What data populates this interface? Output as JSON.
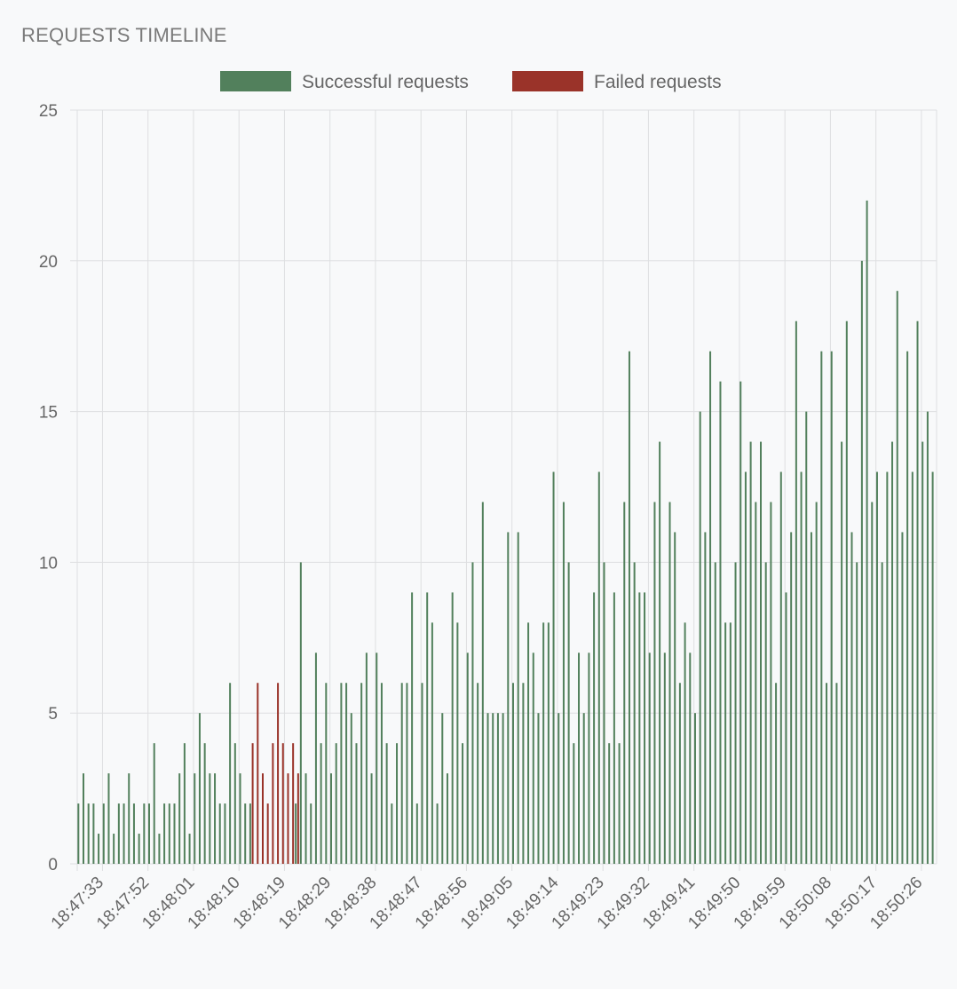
{
  "title": "REQUESTS TIMELINE",
  "chart_data": {
    "type": "bar",
    "title": "REQUESTS TIMELINE",
    "xlabel": "",
    "ylabel": "",
    "ylim": [
      0,
      25
    ],
    "y_ticks": [
      0,
      5,
      10,
      15,
      20,
      25
    ],
    "grid": true,
    "legend_position": "top-center",
    "x_tick_labels": [
      "18:47:33",
      "18:47:52",
      "18:48:01",
      "18:48:10",
      "18:48:19",
      "18:48:29",
      "18:48:38",
      "18:48:47",
      "18:48:56",
      "18:49:05",
      "18:49:14",
      "18:49:23",
      "18:49:32",
      "18:49:41",
      "18:49:50",
      "18:49:59",
      "18:50:08",
      "18:50:17",
      "18:50:26"
    ],
    "x_tick_first_index": 5,
    "x_tick_step": 9,
    "series": [
      {
        "name": "Successful requests",
        "color": "#52805c",
        "values": [
          2,
          3,
          2,
          2,
          1,
          2,
          3,
          1,
          2,
          2,
          3,
          2,
          1,
          2,
          2,
          4,
          1,
          2,
          2,
          2,
          3,
          4,
          1,
          3,
          5,
          4,
          3,
          3,
          2,
          2,
          6,
          4,
          3,
          2,
          2,
          0,
          0,
          0,
          0,
          0,
          0,
          0,
          0,
          2,
          10,
          3,
          2,
          7,
          4,
          6,
          3,
          4,
          6,
          6,
          5,
          4,
          6,
          7,
          3,
          7,
          6,
          4,
          2,
          4,
          6,
          6,
          9,
          2,
          6,
          9,
          8,
          2,
          5,
          3,
          9,
          8,
          4,
          7,
          10,
          6,
          12,
          5,
          5,
          5,
          5,
          11,
          6,
          11,
          6,
          8,
          7,
          5,
          8,
          8,
          13,
          5,
          12,
          10,
          4,
          7,
          5,
          7,
          9,
          13,
          10,
          4,
          9,
          4,
          12,
          17,
          10,
          9,
          9,
          7,
          12,
          14,
          7,
          12,
          11,
          6,
          8,
          7,
          5,
          15,
          11,
          17,
          10,
          16,
          8,
          8,
          10,
          16,
          13,
          14,
          12,
          14,
          10,
          12,
          6,
          13,
          9,
          11,
          18,
          13,
          15,
          11,
          12,
          17,
          6,
          17,
          6,
          14,
          18,
          11,
          10,
          20,
          22,
          12,
          13,
          10,
          13,
          14,
          19,
          11,
          17,
          13,
          18,
          14,
          15,
          13
        ]
      },
      {
        "name": "Failed requests",
        "color": "#9a3329",
        "values": [
          0,
          0,
          0,
          0,
          0,
          0,
          0,
          0,
          0,
          0,
          0,
          0,
          0,
          0,
          0,
          0,
          0,
          0,
          0,
          0,
          0,
          0,
          0,
          0,
          0,
          0,
          0,
          0,
          0,
          0,
          0,
          0,
          0,
          0,
          4,
          6,
          3,
          2,
          4,
          6,
          4,
          3,
          4,
          3,
          0,
          0,
          0,
          0,
          0,
          0,
          0,
          0,
          0,
          0,
          0,
          0,
          0,
          0,
          0,
          0,
          0,
          0,
          0,
          0,
          0,
          0,
          0,
          0,
          0,
          0,
          0,
          0,
          0,
          0,
          0,
          0,
          0,
          0,
          0,
          0,
          0,
          0,
          0,
          0,
          0,
          0,
          0,
          0,
          0,
          0,
          0,
          0,
          0,
          0,
          0,
          0,
          0,
          0,
          0,
          0,
          0,
          0,
          0,
          0,
          0,
          0,
          0,
          0,
          0,
          0,
          0,
          0,
          0,
          0,
          0,
          0,
          0,
          0,
          0,
          0,
          0,
          0,
          0,
          0,
          0,
          0,
          0,
          0,
          0,
          0,
          0,
          0,
          0,
          0,
          0,
          0,
          0,
          0,
          0,
          0,
          0,
          0,
          0,
          0,
          0,
          0,
          0,
          0,
          0,
          0,
          0,
          0,
          0,
          0,
          0,
          0,
          0,
          0,
          0,
          0,
          0,
          0,
          0,
          0,
          0,
          0,
          0,
          0,
          0,
          0
        ]
      }
    ]
  }
}
